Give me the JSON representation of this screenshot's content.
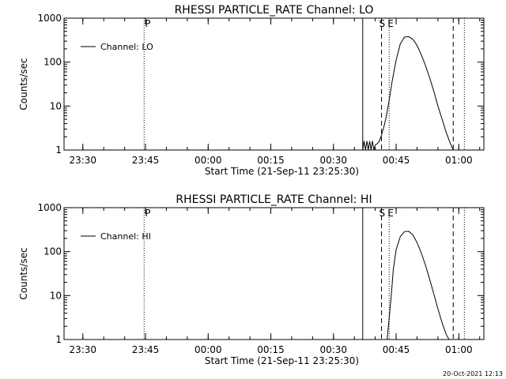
{
  "chart_data": [
    {
      "type": "line",
      "title": "RHESSI PARTICLE_RATE Channel: LO",
      "xlabel": "Start Time (21-Sep-11 23:25:30)",
      "ylabel": "Counts/sec",
      "yscale": "log",
      "ylim": [
        1,
        1000
      ],
      "xlim": [
        "23:25:30",
        "01:06:00"
      ],
      "x_ticks": [
        "23:30",
        "23:45",
        "00:00",
        "00:15",
        "00:30",
        "00:45",
        "01:00"
      ],
      "y_ticks": [
        "1",
        "10",
        "100",
        "1000"
      ],
      "legend": {
        "label": "Channel: LO",
        "placement": "top-left"
      },
      "markers": [
        {
          "label": "P",
          "time": "23:44:40",
          "style": "dotted"
        },
        {
          "label": "",
          "time": "00:37:00",
          "style": "solid"
        },
        {
          "label": "S",
          "time": "00:41:30",
          "style": "dashed"
        },
        {
          "label": "E",
          "time": "00:43:20",
          "style": "dotted"
        },
        {
          "label": "",
          "time": "00:58:40",
          "style": "dashed"
        },
        {
          "label": "",
          "time": "01:01:20",
          "style": "dotted"
        }
      ],
      "series": [
        {
          "name": "Channel: LO",
          "x": [
            "00:37:00",
            "00:37:20",
            "00:37:40",
            "00:38:00",
            "00:38:20",
            "00:38:40",
            "00:39:00",
            "00:39:20",
            "00:39:40",
            "00:40:00",
            "00:40:30",
            "00:41:00",
            "00:41:30",
            "00:42:00",
            "00:42:30",
            "00:43:00",
            "00:43:30",
            "00:44:00",
            "00:45:00",
            "00:46:00",
            "00:47:00",
            "00:48:00",
            "00:49:00",
            "00:50:00",
            "00:51:00",
            "00:52:00",
            "00:53:00",
            "00:54:00",
            "00:55:00",
            "00:56:00",
            "00:57:00",
            "00:58:00",
            "00:58:40"
          ],
          "values": [
            1,
            1.6,
            1,
            1.6,
            1,
            1.6,
            1,
            1.6,
            1,
            1.3,
            1.4,
            1.6,
            2.2,
            3.2,
            5,
            9,
            17,
            35,
            110,
            260,
            370,
            380,
            330,
            240,
            150,
            85,
            45,
            22,
            10,
            5,
            2.5,
            1.4,
            1
          ]
        }
      ]
    },
    {
      "type": "line",
      "title": "RHESSI PARTICLE_RATE Channel: HI",
      "xlabel": "Start Time (21-Sep-11 23:25:30)",
      "ylabel": "Counts/sec",
      "yscale": "log",
      "ylim": [
        1,
        1000
      ],
      "xlim": [
        "23:25:30",
        "01:06:00"
      ],
      "x_ticks": [
        "23:30",
        "23:45",
        "00:00",
        "00:15",
        "00:30",
        "00:45",
        "01:00"
      ],
      "y_ticks": [
        "1",
        "10",
        "100",
        "1000"
      ],
      "legend": {
        "label": "Channel: HI",
        "placement": "top-left"
      },
      "markers": [
        {
          "label": "P",
          "time": "23:44:40",
          "style": "dotted"
        },
        {
          "label": "",
          "time": "00:37:00",
          "style": "solid"
        },
        {
          "label": "S",
          "time": "00:41:30",
          "style": "dashed"
        },
        {
          "label": "E",
          "time": "00:43:20",
          "style": "dotted"
        },
        {
          "label": "",
          "time": "00:58:40",
          "style": "dashed"
        },
        {
          "label": "",
          "time": "01:01:20",
          "style": "dotted"
        }
      ],
      "series": [
        {
          "name": "Channel: HI",
          "x": [
            "00:42:50",
            "00:43:20",
            "00:43:50",
            "00:44:20",
            "00:45:00",
            "00:46:00",
            "00:47:00",
            "00:48:00",
            "00:49:00",
            "00:50:00",
            "00:51:00",
            "00:52:00",
            "00:53:00",
            "00:54:00",
            "00:55:00",
            "00:56:00",
            "00:57:00",
            "00:57:40"
          ],
          "values": [
            1,
            3,
            10,
            40,
            110,
            220,
            285,
            290,
            240,
            160,
            95,
            50,
            24,
            11,
            5,
            2.4,
            1.3,
            1
          ]
        }
      ]
    }
  ],
  "timestamp": "20-Oct-2021 12:13"
}
